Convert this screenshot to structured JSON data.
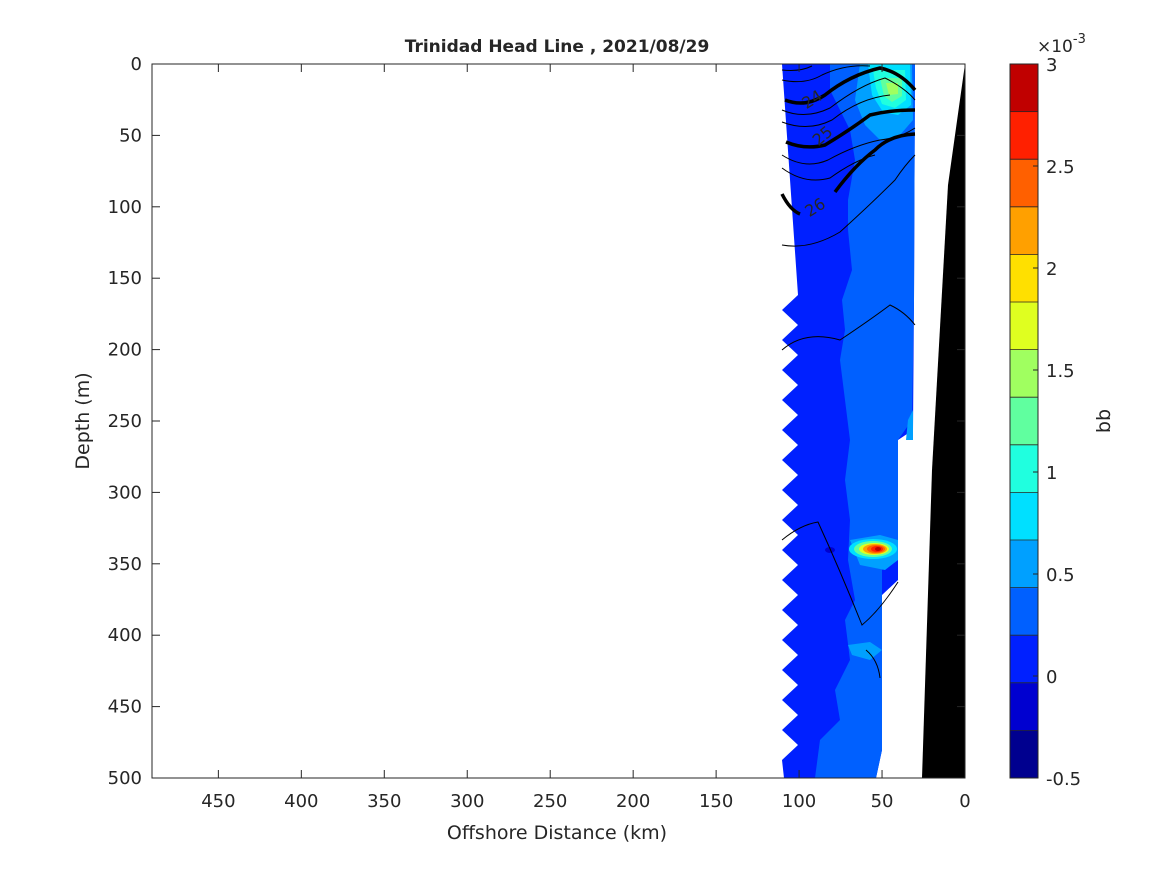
{
  "chart_data": {
    "type": "contour",
    "title": "Trinidad Head Line , 2021/08/29",
    "xlabel": "Offshore Distance (km)",
    "ylabel": "Depth (m)",
    "x_reversed": true,
    "y_reversed": true,
    "xlim": [
      0,
      490
    ],
    "ylim": [
      0,
      500
    ],
    "xticks": [
      450,
      400,
      350,
      300,
      250,
      200,
      150,
      100,
      50,
      0
    ],
    "yticks": [
      0,
      50,
      100,
      150,
      200,
      250,
      300,
      350,
      400,
      450,
      500
    ],
    "colorbar": {
      "label": "bb",
      "exponent_label": "×10",
      "exponent_power": "-3",
      "ticks": [
        "3",
        "2.5",
        "2",
        "1.5",
        "1",
        "0.5",
        "0",
        "-0.5"
      ],
      "range": [
        -0.5,
        3
      ],
      "levels": [
        -0.5,
        -0.25,
        0,
        0.25,
        0.5,
        0.75,
        1,
        1.25,
        1.5,
        1.75,
        2,
        2.25,
        2.5,
        2.75,
        3
      ],
      "colors": [
        "#00008f",
        "#0000d0",
        "#0020ff",
        "#0060ff",
        "#00a0ff",
        "#00e0ff",
        "#20ffdf",
        "#60ff9f",
        "#a0ff60",
        "#dfff20",
        "#ffe000",
        "#ffa000",
        "#ff6000",
        "#ff2000",
        "#c00000"
      ]
    },
    "data_extent_km": [
      30,
      110
    ],
    "bathymetry_color": "#000000",
    "density_contour_labels": [
      "24",
      "25",
      "26"
    ],
    "features": [
      {
        "name": "bb maximum",
        "distance_km": 50,
        "depth_m": 340,
        "value_approx": 2.9
      },
      {
        "name": "near-surface elevated bb",
        "distance_km": 50,
        "depth_m": 20,
        "value_approx": 1.3
      }
    ]
  }
}
